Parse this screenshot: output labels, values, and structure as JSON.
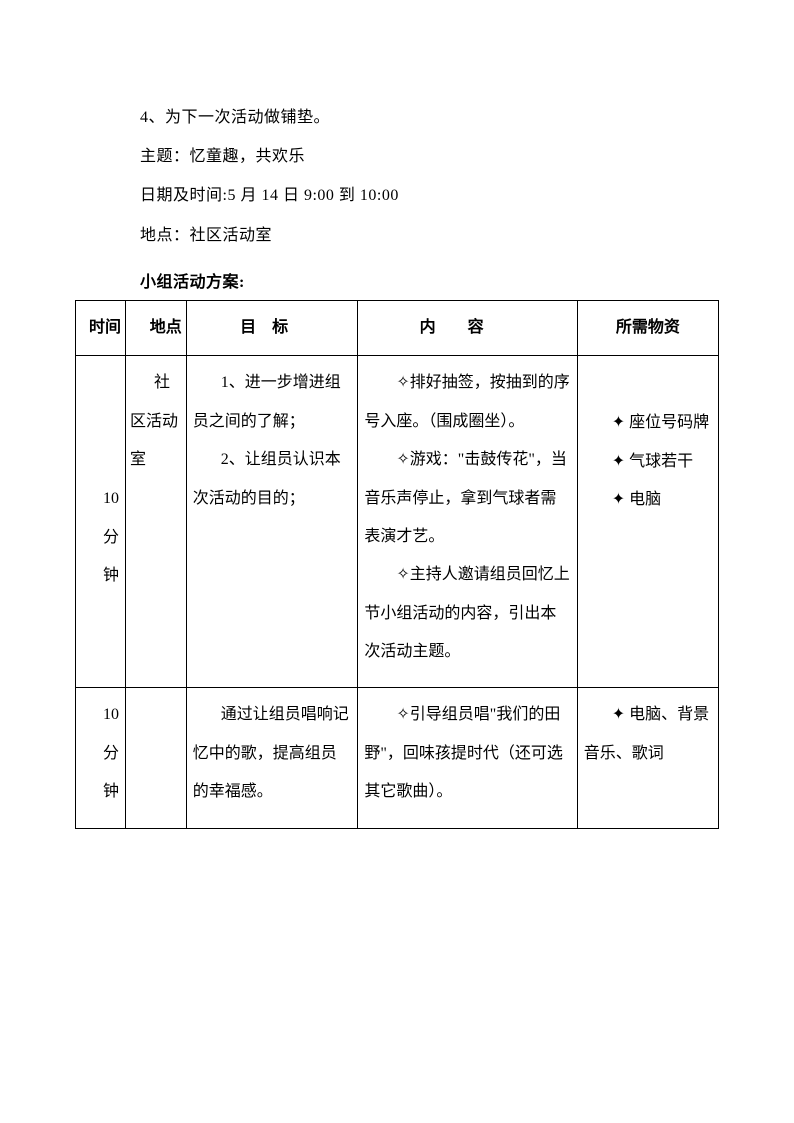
{
  "intro": {
    "line1": "4、为下一次活动做铺垫。",
    "line2": "主题：忆童趣，共欢乐",
    "line3": "日期及时间:5 月 14 日 9:00 到 10:00",
    "line4": "地点：社区活动室"
  },
  "section_title": "小组活动方案:",
  "table": {
    "headers": {
      "time": "时间",
      "place": "地点",
      "goal": "目标",
      "content": "内容",
      "resource": "所需物资"
    },
    "rows": [
      {
        "time_lines": [
          "10",
          "分",
          "钟"
        ],
        "place": "社区活动室",
        "goals": [
          "1、进一步增进组员之间的了解；",
          "2、让组员认识本次活动的目的；"
        ],
        "contents": [
          "✧排好抽签，按抽到的序号入座。（围成圈坐）。",
          "✧游戏：\"击鼓传花\"，当音乐声停止，拿到气球者需表演才艺。",
          "✧主持人邀请组员回忆上节小组活动的内容，引出本次活动主题。"
        ],
        "resources": [
          "✦ 座位号码牌",
          "✦ 气球若干",
          "✦ 电脑"
        ]
      },
      {
        "time_lines": [
          "10",
          "分",
          "钟"
        ],
        "place": "",
        "goals": [
          "通过让组员唱响记忆中的歌，提高组员的幸福感。"
        ],
        "contents": [
          "✧引导组员唱\"我们的田野\"，回味孩提时代（还可选其它歌曲）。"
        ],
        "resources": [
          "✦ 电脑、背景音乐、歌词"
        ]
      }
    ]
  }
}
